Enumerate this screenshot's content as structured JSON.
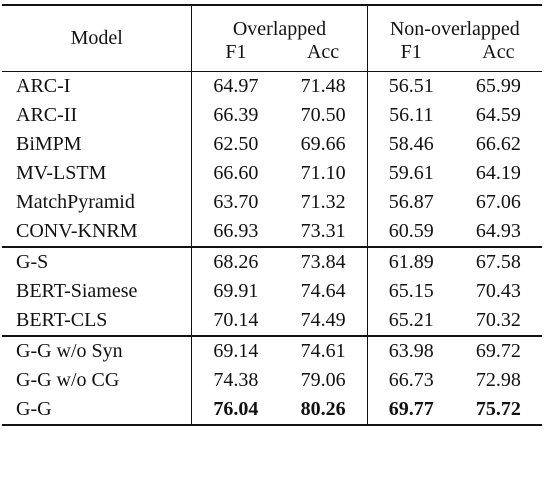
{
  "header": {
    "model": "Model",
    "group_overlapped": "Overlapped",
    "group_non_overlapped": "Non-overlapped",
    "f1": "F1",
    "acc": "Acc"
  },
  "chart_data": {
    "type": "table",
    "columns": [
      "Model",
      "Overlapped F1",
      "Overlapped Acc",
      "Non-overlapped F1",
      "Non-overlapped Acc"
    ],
    "groups": [
      {
        "rows": [
          {
            "model": "ARC-I",
            "o_f1": "64.97",
            "o_acc": "71.48",
            "n_f1": "56.51",
            "n_acc": "65.99"
          },
          {
            "model": "ARC-II",
            "o_f1": "66.39",
            "o_acc": "70.50",
            "n_f1": "56.11",
            "n_acc": "64.59"
          },
          {
            "model": "BiMPM",
            "o_f1": "62.50",
            "o_acc": "69.66",
            "n_f1": "58.46",
            "n_acc": "66.62"
          },
          {
            "model": "MV-LSTM",
            "o_f1": "66.60",
            "o_acc": "71.10",
            "n_f1": "59.61",
            "n_acc": "64.19"
          },
          {
            "model": "MatchPyramid",
            "o_f1": "63.70",
            "o_acc": "71.32",
            "n_f1": "56.87",
            "n_acc": "67.06"
          },
          {
            "model": "CONV-KNRM",
            "o_f1": "66.93",
            "o_acc": "73.31",
            "n_f1": "60.59",
            "n_acc": "64.93"
          }
        ]
      },
      {
        "rows": [
          {
            "model": "G-S",
            "o_f1": "68.26",
            "o_acc": "73.84",
            "n_f1": "61.89",
            "n_acc": "67.58"
          },
          {
            "model": "BERT-Siamese",
            "o_f1": "69.91",
            "o_acc": "74.64",
            "n_f1": "65.15",
            "n_acc": "70.43"
          },
          {
            "model": "BERT-CLS",
            "o_f1": "70.14",
            "o_acc": "74.49",
            "n_f1": "65.21",
            "n_acc": "70.32"
          }
        ]
      },
      {
        "rows": [
          {
            "model": "G-G w/o Syn",
            "o_f1": "69.14",
            "o_acc": "74.61",
            "n_f1": "63.98",
            "n_acc": "69.72"
          },
          {
            "model": "G-G w/o CG",
            "o_f1": "74.38",
            "o_acc": "79.06",
            "n_f1": "66.73",
            "n_acc": "72.98"
          },
          {
            "model": "G-G",
            "o_f1": "76.04",
            "o_acc": "80.26",
            "n_f1": "69.77",
            "n_acc": "75.72"
          }
        ]
      }
    ],
    "bold_cells": [
      "G-G"
    ]
  }
}
